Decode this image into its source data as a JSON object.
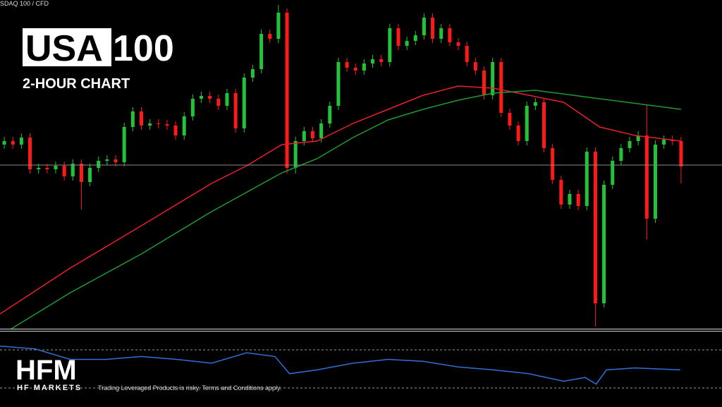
{
  "header": {
    "symbol": "SDAQ 100 / CFD",
    "title_boxed": "USA",
    "title_rest": "100",
    "subtitle": "2-HOUR CHART"
  },
  "footer": {
    "logo": "HFM",
    "brand": "HF MARKETS",
    "disclaimer": "Trading Leveraged Products is risky. Terms and Conditions apply."
  },
  "chart_data": [
    {
      "type": "candlestick",
      "xlim": [
        -0.5,
        79.5
      ],
      "ylim": [
        0,
        467
      ],
      "up_color": "#22c33a",
      "down_color": "#ff1a1a",
      "open": [
        262,
        267,
        262,
        272,
        227,
        229,
        227,
        232,
        217,
        235,
        209,
        229,
        239,
        241,
        237,
        287,
        309,
        289,
        292,
        291,
        289,
        275,
        302,
        327,
        331,
        327,
        317,
        335,
        285,
        357,
        369,
        419,
        412,
        449,
        229,
        267,
        281,
        271,
        292,
        317,
        379,
        371,
        367,
        377,
        383,
        379,
        427,
        402,
        409,
        417,
        442,
        412,
        427,
        407,
        402,
        379,
        367,
        332,
        379,
        307,
        289,
        267,
        317,
        322,
        257,
        212,
        177,
        192,
        175,
        252,
        37,
        205,
        239,
        257,
        267,
        275,
        157,
        262,
        269,
        267
      ],
      "high": [
        273,
        273,
        278,
        278,
        235,
        235,
        238,
        238,
        241,
        241,
        235,
        245,
        247,
        247,
        293,
        315,
        315,
        298,
        298,
        297,
        295,
        308,
        333,
        337,
        337,
        333,
        341,
        341,
        363,
        375,
        425,
        425,
        460,
        455,
        273,
        287,
        287,
        298,
        323,
        385,
        385,
        377,
        383,
        389,
        389,
        433,
        433,
        415,
        423,
        448,
        448,
        433,
        433,
        413,
        408,
        385,
        373,
        385,
        385,
        313,
        295,
        323,
        328,
        328,
        263,
        218,
        198,
        198,
        258,
        258,
        211,
        245,
        263,
        273,
        281,
        319,
        268,
        275,
        275,
        273
      ],
      "low": [
        256,
        256,
        256,
        221,
        221,
        221,
        221,
        211,
        211,
        170,
        203,
        223,
        233,
        231,
        231,
        281,
        283,
        283,
        285,
        283,
        269,
        269,
        296,
        321,
        321,
        311,
        311,
        279,
        279,
        351,
        363,
        406,
        406,
        221,
        221,
        261,
        265,
        265,
        286,
        311,
        365,
        361,
        361,
        371,
        373,
        373,
        396,
        396,
        403,
        411,
        406,
        406,
        401,
        396,
        373,
        361,
        326,
        326,
        301,
        283,
        261,
        261,
        311,
        251,
        206,
        171,
        171,
        169,
        169,
        4,
        31,
        199,
        233,
        251,
        261,
        127,
        151,
        256,
        261,
        207
      ],
      "close": [
        267,
        262,
        272,
        227,
        229,
        227,
        232,
        217,
        235,
        209,
        229,
        239,
        241,
        237,
        287,
        309,
        289,
        292,
        291,
        289,
        275,
        302,
        327,
        331,
        327,
        317,
        335,
        285,
        357,
        369,
        419,
        412,
        449,
        229,
        267,
        281,
        271,
        292,
        317,
        379,
        371,
        367,
        377,
        383,
        379,
        427,
        402,
        409,
        417,
        442,
        412,
        427,
        407,
        402,
        379,
        367,
        332,
        379,
        307,
        289,
        267,
        317,
        322,
        257,
        212,
        177,
        192,
        175,
        252,
        37,
        205,
        239,
        257,
        267,
        275,
        157,
        262,
        269,
        267,
        231
      ],
      "series": [
        {
          "color": "#e8202a",
          "x": [
            -0.5,
            7.7,
            16,
            24.2,
            28.3,
            32.4,
            36.5,
            40.7,
            44.8,
            48.9,
            53,
            57.1,
            61.2,
            65.3,
            69.5,
            73.6,
            79
          ],
          "values": [
            22,
            87,
            147,
            207,
            232,
            262,
            267,
            292,
            312,
            332,
            345,
            342,
            332,
            322,
            287,
            275,
            267
          ]
        },
        {
          "color": "#1f9a32",
          "x": [
            0.7,
            7.7,
            16,
            24.2,
            32.4,
            36.5,
            40.7,
            44.8,
            48.9,
            53,
            57.1,
            62,
            69.5,
            79
          ],
          "values": [
            0,
            52,
            107,
            167,
            222,
            242,
            272,
            297,
            312,
            325,
            335,
            339,
            327,
            312
          ]
        }
      ],
      "hline": 233,
      "hline_color": "#8a8a8a"
    },
    {
      "type": "line",
      "xlim": [
        -0.5,
        79.5
      ],
      "ylim": [
        10,
        90
      ],
      "yticks": [
        30,
        70
      ],
      "grid": true,
      "series": [
        {
          "color": "#2f6fd6",
          "x": [
            -0.5,
            3.6,
            7.7,
            11.9,
            16,
            20.1,
            24.2,
            28.3,
            31.6,
            33.3,
            36.5,
            40.7,
            44.8,
            48.9,
            53,
            57.1,
            61.2,
            65.3,
            67.8,
            69.1,
            70.3,
            73.6,
            78.9
          ],
          "values": [
            74,
            71,
            60,
            60,
            63,
            60,
            56,
            67,
            63,
            45,
            49,
            56,
            60,
            58,
            52,
            49,
            45,
            37,
            41,
            34,
            49,
            51,
            49
          ]
        }
      ]
    }
  ]
}
